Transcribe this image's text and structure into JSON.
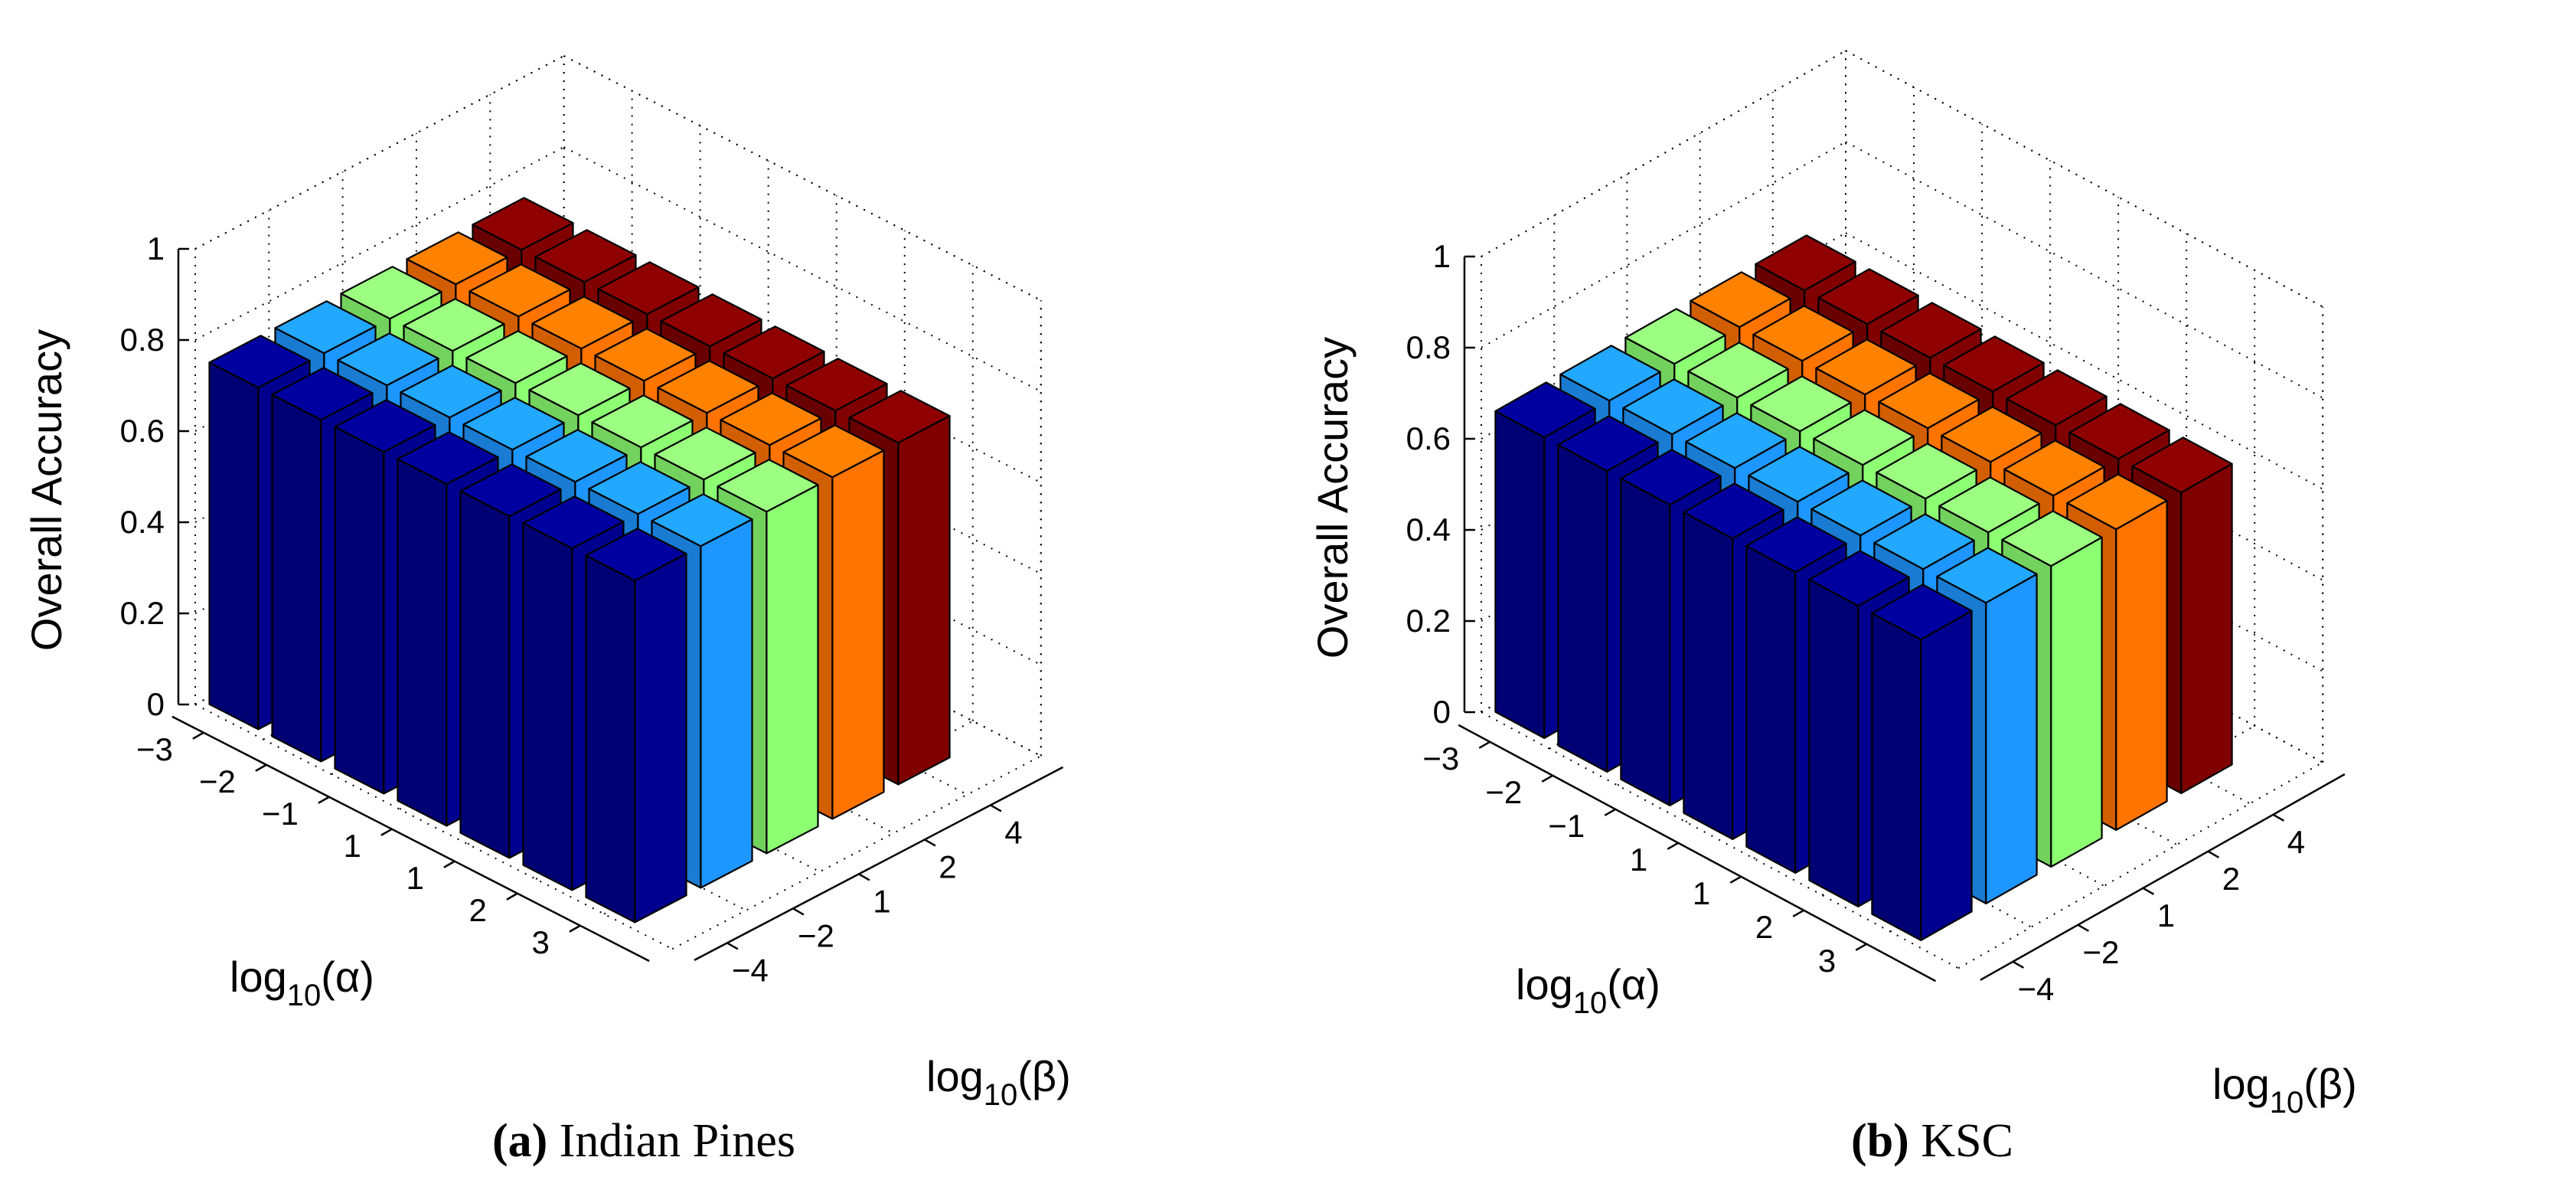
{
  "chart_data": [
    {
      "type": "bar3d",
      "panel_tag": "(a)",
      "caption": "Indian Pines",
      "zlabel": "Overall Accuracy",
      "xlabel_base": "log",
      "xlabel_sub": "10",
      "xlabel_arg": "(α)",
      "ylabel_base": "log",
      "ylabel_sub": "10",
      "ylabel_arg": "(β)",
      "alpha_ticks": [
        "−3",
        "−2",
        "−1",
        "1",
        "1",
        "2",
        "3"
      ],
      "beta_ticks": [
        "−4",
        "−2",
        "1",
        "2",
        "4"
      ],
      "z_ticks": [
        "0",
        "0.2",
        "0.4",
        "0.6",
        "0.8",
        "1"
      ],
      "zlim": [
        0,
        1
      ],
      "series_colors": [
        "#00008f",
        "#1e96ff",
        "#8cff73",
        "#ff7300",
        "#800000"
      ],
      "values": [
        [
          0.75,
          0.75,
          0.75,
          0.75,
          0.75
        ],
        [
          0.75,
          0.75,
          0.75,
          0.75,
          0.75
        ],
        [
          0.75,
          0.75,
          0.75,
          0.75,
          0.75
        ],
        [
          0.75,
          0.75,
          0.75,
          0.75,
          0.75
        ],
        [
          0.75,
          0.75,
          0.75,
          0.75,
          0.75
        ],
        [
          0.75,
          0.75,
          0.75,
          0.75,
          0.75
        ],
        [
          0.75,
          0.75,
          0.75,
          0.75,
          0.75
        ]
      ]
    },
    {
      "type": "bar3d",
      "panel_tag": "(b)",
      "caption": "KSC",
      "zlabel": "Overall Accuracy",
      "xlabel_base": "log",
      "xlabel_sub": "10",
      "xlabel_arg": "(α)",
      "ylabel_base": "log",
      "ylabel_sub": "10",
      "ylabel_arg": "(β)",
      "alpha_ticks": [
        "−3",
        "−2",
        "−1",
        "1",
        "1",
        "2",
        "3"
      ],
      "beta_ticks": [
        "−4",
        "−2",
        "1",
        "2",
        "4"
      ],
      "z_ticks": [
        "0",
        "0.2",
        "0.4",
        "0.6",
        "0.8",
        "1"
      ],
      "zlim": [
        0,
        1
      ],
      "series_colors": [
        "#00008f",
        "#1e96ff",
        "#8cff73",
        "#ff7300",
        "#800000"
      ],
      "values": [
        [
          0.66,
          0.66,
          0.66,
          0.66,
          0.66
        ],
        [
          0.66,
          0.66,
          0.66,
          0.66,
          0.66
        ],
        [
          0.66,
          0.66,
          0.66,
          0.66,
          0.66
        ],
        [
          0.66,
          0.66,
          0.66,
          0.66,
          0.66
        ],
        [
          0.66,
          0.66,
          0.66,
          0.66,
          0.66
        ],
        [
          0.66,
          0.66,
          0.66,
          0.66,
          0.66
        ],
        [
          0.66,
          0.66,
          0.66,
          0.66,
          0.66
        ]
      ]
    }
  ]
}
